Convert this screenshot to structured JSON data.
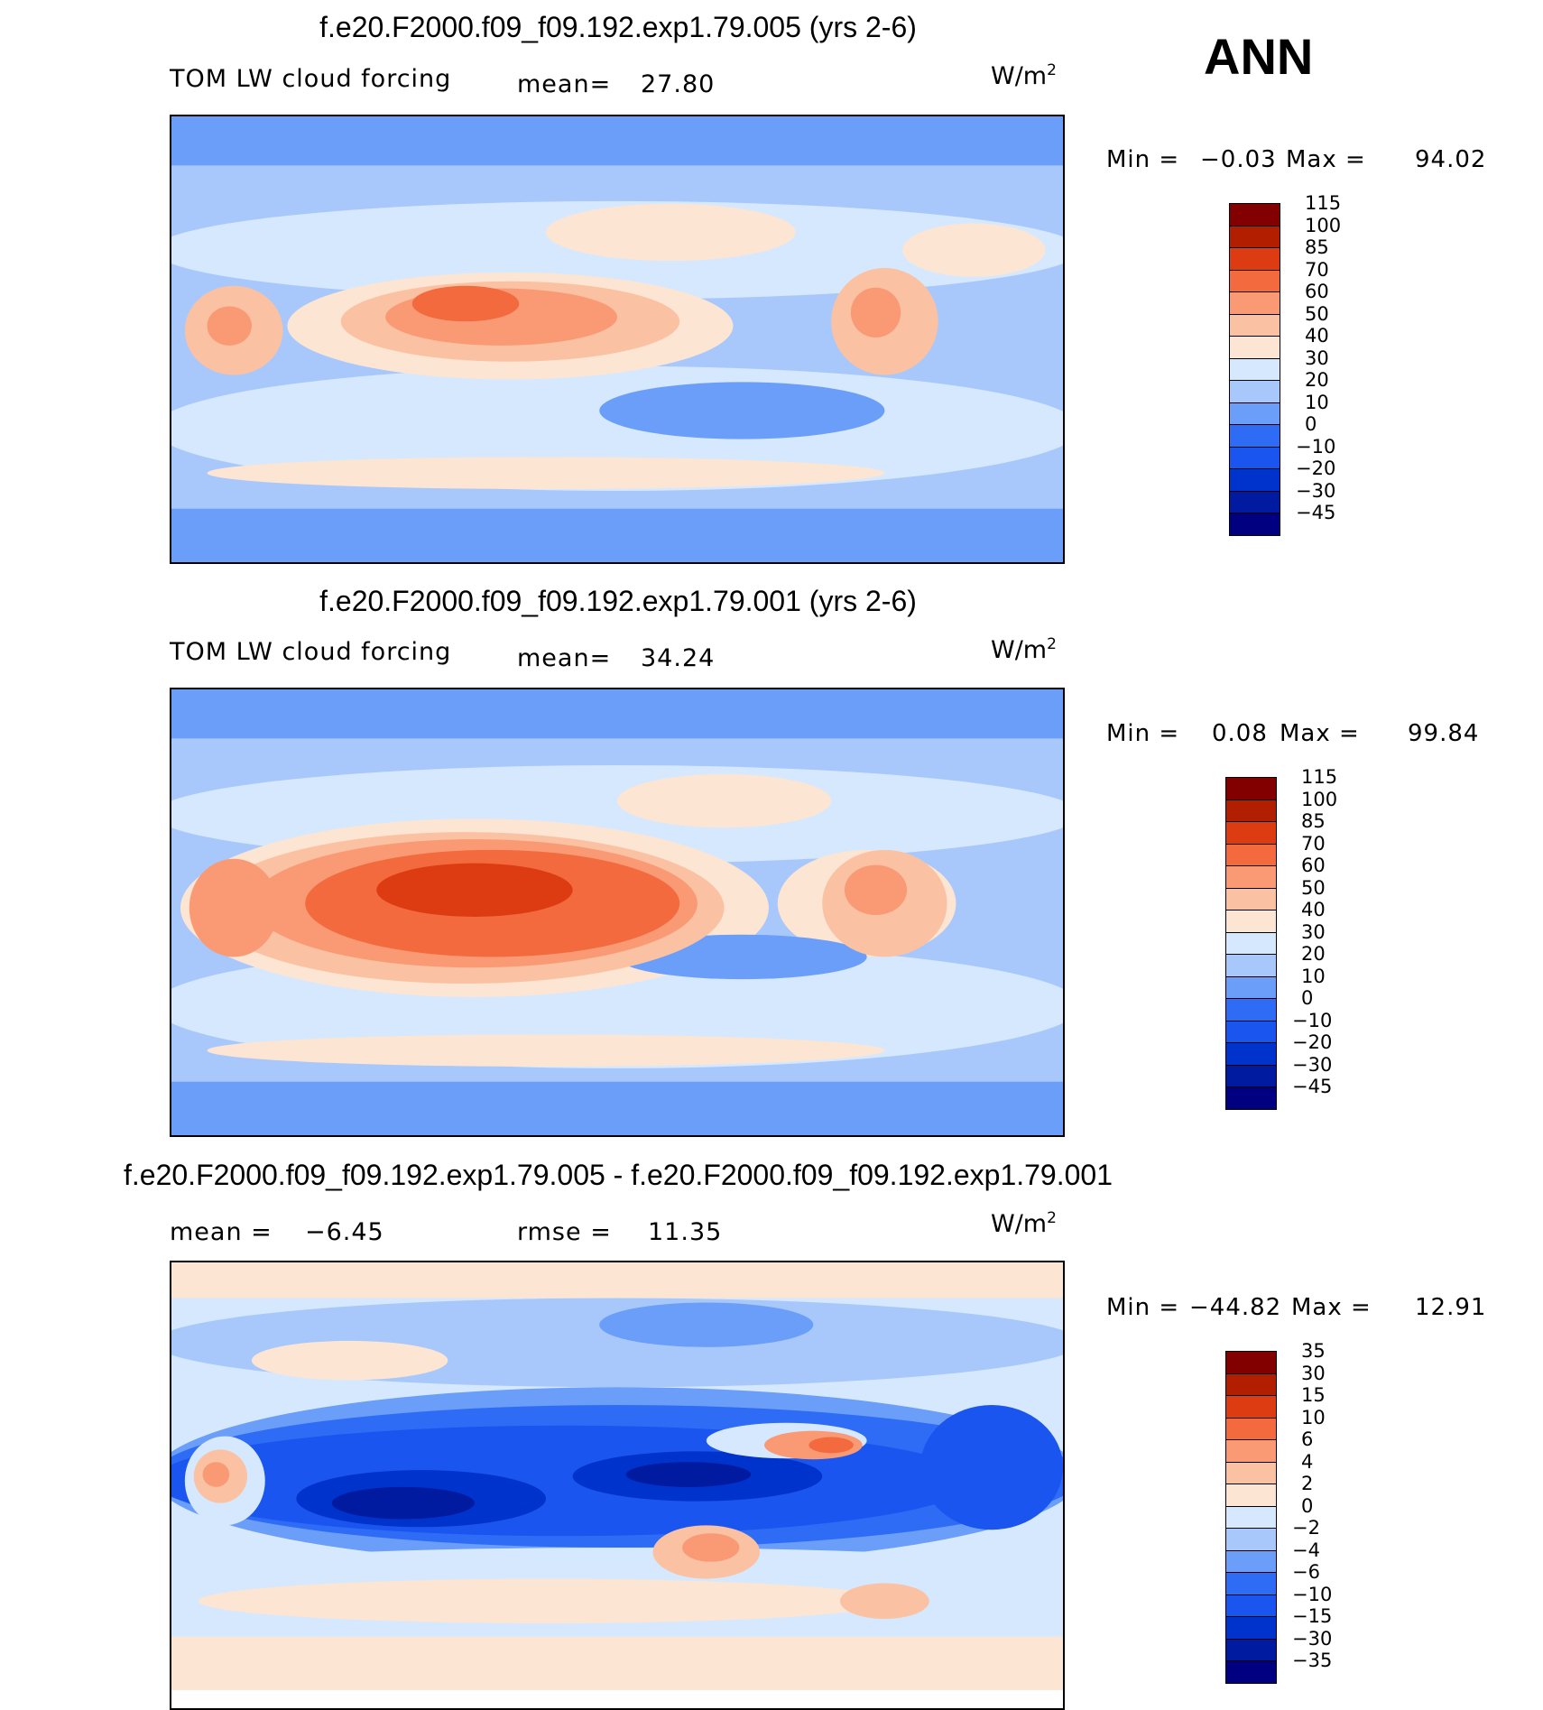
{
  "season": "ANN",
  "panels": [
    {
      "title": "f.e20.F2000.f09_f09.192.exp1.79.005 (yrs 2-6)",
      "left_label": "TOM LW cloud forcing",
      "stat_label": "mean=",
      "stat_value": "27.80",
      "units_base": "W/m",
      "units_exp": "2",
      "min_label": "Min =",
      "min_value": "−0.03",
      "max_label": "Max =",
      "max_value": "94.02",
      "colorbar": {
        "colors": [
          "#000080",
          "#001aa0",
          "#0033cc",
          "#1a55f0",
          "#2f6cf5",
          "#6a9ef8",
          "#a8c8fb",
          "#d6e8fd",
          "#fde5d3",
          "#fbc1a3",
          "#f99a75",
          "#f26a3e",
          "#dd3c12",
          "#b21e00",
          "#820000"
        ],
        "labels": [
          "−45",
          "−30",
          "−20",
          "−10",
          "0",
          "10",
          "20",
          "30",
          "40",
          "50",
          "60",
          "70",
          "85",
          "100",
          "115"
        ]
      }
    },
    {
      "title": "f.e20.F2000.f09_f09.192.exp1.79.001 (yrs 2-6)",
      "left_label": "TOM LW cloud forcing",
      "stat_label": "mean=",
      "stat_value": "34.24",
      "units_base": "W/m",
      "units_exp": "2",
      "min_label": "Min =",
      "min_value": "0.08",
      "max_label": "Max =",
      "max_value": "99.84",
      "colorbar": {
        "colors": [
          "#000080",
          "#001aa0",
          "#0033cc",
          "#1a55f0",
          "#2f6cf5",
          "#6a9ef8",
          "#a8c8fb",
          "#d6e8fd",
          "#fde5d3",
          "#fbc1a3",
          "#f99a75",
          "#f26a3e",
          "#dd3c12",
          "#b21e00",
          "#820000"
        ],
        "labels": [
          "−45",
          "−30",
          "−20",
          "−10",
          "0",
          "10",
          "20",
          "30",
          "40",
          "50",
          "60",
          "70",
          "85",
          "100",
          "115"
        ]
      }
    },
    {
      "title": "f.e20.F2000.f09_f09.192.exp1.79.005 - f.e20.F2000.f09_f09.192.exp1.79.001",
      "left_label": "mean =",
      "left_value": "−6.45",
      "stat_label": "rmse =",
      "stat_value": "11.35",
      "units_base": "W/m",
      "units_exp": "2",
      "min_label": "Min =",
      "min_value": "−44.82",
      "max_label": "Max =",
      "max_value": "12.91",
      "colorbar": {
        "colors": [
          "#000080",
          "#001aa0",
          "#0033cc",
          "#1a55f0",
          "#2f6cf5",
          "#6a9ef8",
          "#a8c8fb",
          "#d6e8fd",
          "#fde5d3",
          "#fbc1a3",
          "#f99a75",
          "#f26a3e",
          "#dd3c12",
          "#b21e00",
          "#820000"
        ],
        "labels": [
          "−35",
          "−30",
          "−15",
          "−10",
          "−6",
          "−4",
          "−2",
          "0",
          "2",
          "4",
          "6",
          "10",
          "15",
          "30",
          "35"
        ]
      }
    }
  ]
}
